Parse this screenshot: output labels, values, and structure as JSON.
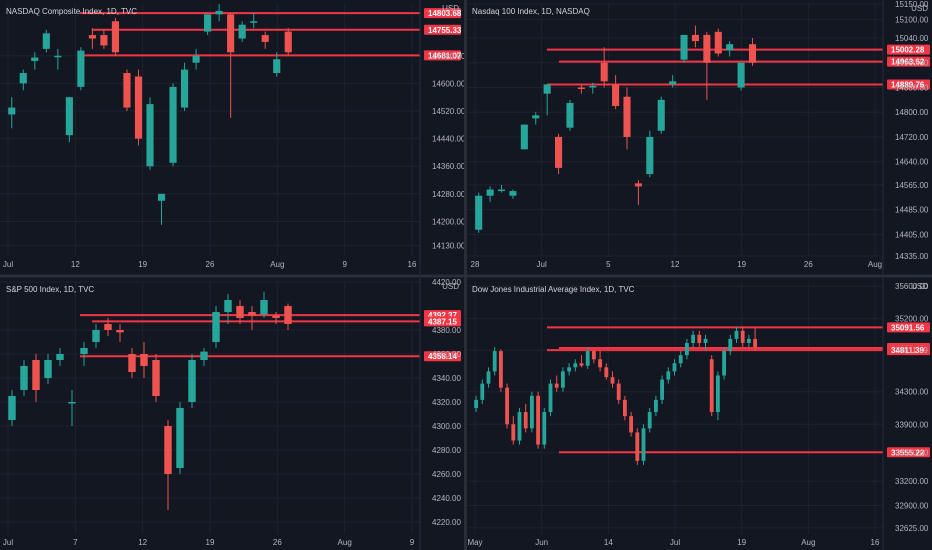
{
  "colors": {
    "background": "#131722",
    "grid": "#1e222d",
    "divider": "#2a2e39",
    "up": "#26a69a",
    "down": "#ef5350",
    "level": "#f23645",
    "text": "#b2b5be"
  },
  "chart_data": [
    {
      "type": "candlestick",
      "title": "NASDAQ Composite Index, 1D, TVC",
      "currency": "USD",
      "ylim": [
        14100,
        14830
      ],
      "x_ticks": [
        "Jul",
        "12",
        "19",
        "26",
        "Aug",
        "9",
        "16"
      ],
      "y_ticks": [
        "14130.00",
        "14200.00",
        "14280.00",
        "14360.00",
        "14440.00",
        "14520.00",
        "14600.00",
        "14680.00"
      ],
      "levels": [
        {
          "value": 14803.68,
          "label": "14803.68"
        },
        {
          "value": 14755.33,
          "label": "14755.33"
        },
        {
          "value": 14681.07,
          "label": "14681.07"
        }
      ],
      "candles": [
        {
          "o": 14510,
          "h": 14560,
          "l": 14470,
          "c": 14530
        },
        {
          "o": 14600,
          "h": 14640,
          "l": 14580,
          "c": 14630
        },
        {
          "o": 14665,
          "h": 14690,
          "l": 14640,
          "c": 14675
        },
        {
          "o": 14700,
          "h": 14755,
          "l": 14690,
          "c": 14745
        },
        {
          "o": 14680,
          "h": 14700,
          "l": 14640,
          "c": 14680
        },
        {
          "o": 14450,
          "h": 14560,
          "l": 14430,
          "c": 14560
        },
        {
          "o": 14590,
          "h": 14705,
          "l": 14580,
          "c": 14695
        },
        {
          "o": 14740,
          "h": 14760,
          "l": 14700,
          "c": 14730
        },
        {
          "o": 14740,
          "h": 14755,
          "l": 14700,
          "c": 14710
        },
        {
          "o": 14780,
          "h": 14790,
          "l": 14680,
          "c": 14690
        },
        {
          "o": 14630,
          "h": 14640,
          "l": 14520,
          "c": 14530
        },
        {
          "o": 14620,
          "h": 14640,
          "l": 14420,
          "c": 14440
        },
        {
          "o": 14360,
          "h": 14560,
          "l": 14350,
          "c": 14540
        },
        {
          "o": 14260,
          "h": 14280,
          "l": 14190,
          "c": 14280
        },
        {
          "o": 14370,
          "h": 14600,
          "l": 14360,
          "c": 14590
        },
        {
          "o": 14530,
          "h": 14660,
          "l": 14520,
          "c": 14640
        },
        {
          "o": 14660,
          "h": 14700,
          "l": 14640,
          "c": 14680
        },
        {
          "o": 14750,
          "h": 14800,
          "l": 14740,
          "c": 14800
        },
        {
          "o": 14800,
          "h": 14830,
          "l": 14780,
          "c": 14810
        },
        {
          "o": 14800,
          "h": 14805,
          "l": 14500,
          "c": 14690
        },
        {
          "o": 14730,
          "h": 14780,
          "l": 14720,
          "c": 14770
        },
        {
          "o": 14780,
          "h": 14805,
          "l": 14760,
          "c": 14780
        },
        {
          "o": 14740,
          "h": 14750,
          "l": 14700,
          "c": 14720
        },
        {
          "o": 14630,
          "h": 14690,
          "l": 14620,
          "c": 14670
        },
        {
          "o": 14750,
          "h": 14760,
          "l": 14680,
          "c": 14690
        }
      ]
    },
    {
      "type": "candlestick",
      "title": "Nasdaq 100 Index, 1D, NASDAQ",
      "currency": "USD",
      "ylim": [
        14335,
        15150
      ],
      "x_ticks": [
        "28",
        "Jul",
        "5",
        "12",
        "19",
        "26",
        "Aug"
      ],
      "y_ticks": [
        "14335.00",
        "14405.00",
        "14485.00",
        "14565.00",
        "14640.00",
        "14720.00",
        "14800.00",
        "14880.00",
        "14960.00",
        "15040.00",
        "15100.00",
        "15150.00"
      ],
      "levels": [
        {
          "value": 15002.28,
          "label": "15002.28"
        },
        {
          "value": 14963.62,
          "label": "14963.62"
        },
        {
          "value": 14889.76,
          "label": "14889.76"
        }
      ],
      "candles": [
        {
          "o": 14420,
          "h": 14540,
          "l": 14410,
          "c": 14530
        },
        {
          "o": 14530,
          "h": 14560,
          "l": 14510,
          "c": 14550
        },
        {
          "o": 14545,
          "h": 14565,
          "l": 14540,
          "c": 14550
        },
        {
          "o": 14530,
          "h": 14550,
          "l": 14520,
          "c": 14545
        },
        {
          "o": 14680,
          "h": 14760,
          "l": 14680,
          "c": 14760
        },
        {
          "o": 14780,
          "h": 14800,
          "l": 14760,
          "c": 14790
        },
        {
          "o": 14860,
          "h": 14890,
          "l": 14790,
          "c": 14890
        },
        {
          "o": 14720,
          "h": 14730,
          "l": 14600,
          "c": 14620
        },
        {
          "o": 14750,
          "h": 14840,
          "l": 14740,
          "c": 14830
        },
        {
          "o": 14880,
          "h": 14890,
          "l": 14860,
          "c": 14875
        },
        {
          "o": 14880,
          "h": 14895,
          "l": 14860,
          "c": 14885
        },
        {
          "o": 14960,
          "h": 15010,
          "l": 14880,
          "c": 14900
        },
        {
          "o": 14890,
          "h": 14920,
          "l": 14810,
          "c": 14820
        },
        {
          "o": 14850,
          "h": 14880,
          "l": 14680,
          "c": 14720
        },
        {
          "o": 14570,
          "h": 14580,
          "l": 14500,
          "c": 14560
        },
        {
          "o": 14600,
          "h": 14740,
          "l": 14590,
          "c": 14720
        },
        {
          "o": 14740,
          "h": 14850,
          "l": 14730,
          "c": 14840
        },
        {
          "o": 14890,
          "h": 14920,
          "l": 14880,
          "c": 14900
        },
        {
          "o": 14970,
          "h": 15050,
          "l": 14960,
          "c": 15050
        },
        {
          "o": 15050,
          "h": 15080,
          "l": 15010,
          "c": 15030
        },
        {
          "o": 15050,
          "h": 15060,
          "l": 14840,
          "c": 14960
        },
        {
          "o": 15060,
          "h": 15070,
          "l": 14980,
          "c": 14990
        },
        {
          "o": 15000,
          "h": 15030,
          "l": 14980,
          "c": 15020
        },
        {
          "o": 14880,
          "h": 14960,
          "l": 14870,
          "c": 14960
        },
        {
          "o": 15020,
          "h": 15040,
          "l": 14950,
          "c": 14960
        }
      ]
    },
    {
      "type": "candlestick",
      "title": "S&P 500 Index, 1D, TVC",
      "currency": "USD",
      "ylim": [
        4210,
        4420
      ],
      "x_ticks": [
        "Jul",
        "7",
        "12",
        "19",
        "26",
        "Aug",
        "9"
      ],
      "y_ticks": [
        "4220.00",
        "4240.00",
        "4260.00",
        "4280.00",
        "4300.00",
        "4320.00",
        "4340.00",
        "4360.00",
        "4380.00",
        "4420.00"
      ],
      "levels": [
        {
          "value": 4392.37,
          "label": "4392.37"
        },
        {
          "value": 4387.15,
          "label": "4387.15"
        },
        {
          "value": 4358.14,
          "label": "4358.14"
        }
      ],
      "candles": [
        {
          "o": 4305,
          "h": 4330,
          "l": 4300,
          "c": 4325
        },
        {
          "o": 4330,
          "h": 4355,
          "l": 4325,
          "c": 4350
        },
        {
          "o": 4355,
          "h": 4360,
          "l": 4320,
          "c": 4330
        },
        {
          "o": 4340,
          "h": 4360,
          "l": 4335,
          "c": 4355
        },
        {
          "o": 4355,
          "h": 4365,
          "l": 4350,
          "c": 4360
        },
        {
          "o": 4320,
          "h": 4330,
          "l": 4300,
          "c": 4320
        },
        {
          "o": 4360,
          "h": 4370,
          "l": 4350,
          "c": 4365
        },
        {
          "o": 4370,
          "h": 4385,
          "l": 4365,
          "c": 4380
        },
        {
          "o": 4385,
          "h": 4390,
          "l": 4375,
          "c": 4380
        },
        {
          "o": 4380,
          "h": 4385,
          "l": 4370,
          "c": 4378
        },
        {
          "o": 4360,
          "h": 4365,
          "l": 4340,
          "c": 4345
        },
        {
          "o": 4360,
          "h": 4370,
          "l": 4340,
          "c": 4350
        },
        {
          "o": 4355,
          "h": 4360,
          "l": 4320,
          "c": 4325
        },
        {
          "o": 4300,
          "h": 4305,
          "l": 4230,
          "c": 4260
        },
        {
          "o": 4265,
          "h": 4320,
          "l": 4260,
          "c": 4315
        },
        {
          "o": 4320,
          "h": 4360,
          "l": 4315,
          "c": 4355
        },
        {
          "o": 4355,
          "h": 4365,
          "l": 4350,
          "c": 4362
        },
        {
          "o": 4370,
          "h": 4400,
          "l": 4365,
          "c": 4395
        },
        {
          "o": 4395,
          "h": 4410,
          "l": 4385,
          "c": 4405
        },
        {
          "o": 4400,
          "h": 4405,
          "l": 4385,
          "c": 4390
        },
        {
          "o": 4395,
          "h": 4400,
          "l": 4380,
          "c": 4392
        },
        {
          "o": 4393,
          "h": 4412,
          "l": 4390,
          "c": 4405
        },
        {
          "o": 4392,
          "h": 4395,
          "l": 4385,
          "c": 4390
        },
        {
          "o": 4400,
          "h": 4402,
          "l": 4380,
          "c": 4385
        }
      ]
    },
    {
      "type": "candlestick",
      "title": "Dow Jones Industrial Average Index, 1D, TVC",
      "currency": "USD",
      "ylim": [
        32550,
        35650
      ],
      "x_ticks": [
        "May",
        "Jun",
        "14",
        "Jul",
        "19",
        "Aug",
        "16"
      ],
      "y_ticks": [
        "32625.00",
        "32900.00",
        "33200.00",
        "33550.00",
        "33900.00",
        "34300.00",
        "34811.39",
        "35200.00",
        "35600.00"
      ],
      "levels": [
        {
          "value": 35091.56,
          "label": "35091.56"
        },
        {
          "value": 34838.17,
          "label": "34838.17"
        },
        {
          "value": 34811.39,
          "label": "34811.39"
        },
        {
          "value": 33555.22,
          "label": "33555.22"
        }
      ],
      "candles": [
        {
          "o": 34100,
          "h": 34250,
          "l": 34050,
          "c": 34200
        },
        {
          "o": 34200,
          "h": 34450,
          "l": 34150,
          "c": 34400
        },
        {
          "o": 34400,
          "h": 34600,
          "l": 34350,
          "c": 34550
        },
        {
          "o": 34550,
          "h": 34850,
          "l": 34500,
          "c": 34800
        },
        {
          "o": 34800,
          "h": 34820,
          "l": 34300,
          "c": 34350
        },
        {
          "o": 34350,
          "h": 34400,
          "l": 33850,
          "c": 33900
        },
        {
          "o": 33900,
          "h": 34000,
          "l": 33650,
          "c": 33700
        },
        {
          "o": 33700,
          "h": 34100,
          "l": 33650,
          "c": 34050
        },
        {
          "o": 34050,
          "h": 34150,
          "l": 33800,
          "c": 33850
        },
        {
          "o": 33850,
          "h": 34300,
          "l": 33800,
          "c": 34250
        },
        {
          "o": 34250,
          "h": 34300,
          "l": 33600,
          "c": 33650
        },
        {
          "o": 33650,
          "h": 34100,
          "l": 33600,
          "c": 34050
        },
        {
          "o": 34050,
          "h": 34450,
          "l": 34000,
          "c": 34400
        },
        {
          "o": 34400,
          "h": 34500,
          "l": 34300,
          "c": 34350
        },
        {
          "o": 34350,
          "h": 34600,
          "l": 34300,
          "c": 34550
        },
        {
          "o": 34550,
          "h": 34650,
          "l": 34500,
          "c": 34600
        },
        {
          "o": 34600,
          "h": 34700,
          "l": 34550,
          "c": 34650
        },
        {
          "o": 34650,
          "h": 34750,
          "l": 34600,
          "c": 34620
        },
        {
          "o": 34620,
          "h": 34850,
          "l": 34580,
          "c": 34800
        },
        {
          "o": 34800,
          "h": 34820,
          "l": 34650,
          "c": 34700
        },
        {
          "o": 34700,
          "h": 34800,
          "l": 34550,
          "c": 34600
        },
        {
          "o": 34600,
          "h": 34650,
          "l": 34450,
          "c": 34480
        },
        {
          "o": 34480,
          "h": 34550,
          "l": 34350,
          "c": 34400
        },
        {
          "o": 34400,
          "h": 34450,
          "l": 34150,
          "c": 34200
        },
        {
          "o": 34200,
          "h": 34250,
          "l": 33950,
          "c": 34000
        },
        {
          "o": 34000,
          "h": 34050,
          "l": 33750,
          "c": 33800
        },
        {
          "o": 33800,
          "h": 33850,
          "l": 33400,
          "c": 33450
        },
        {
          "o": 33450,
          "h": 33900,
          "l": 33400,
          "c": 33850
        },
        {
          "o": 33850,
          "h": 34100,
          "l": 33800,
          "c": 34050
        },
        {
          "o": 34050,
          "h": 34250,
          "l": 34000,
          "c": 34200
        },
        {
          "o": 34200,
          "h": 34500,
          "l": 34150,
          "c": 34450
        },
        {
          "o": 34450,
          "h": 34600,
          "l": 34400,
          "c": 34550
        },
        {
          "o": 34550,
          "h": 34700,
          "l": 34500,
          "c": 34650
        },
        {
          "o": 34650,
          "h": 34800,
          "l": 34600,
          "c": 34750
        },
        {
          "o": 34750,
          "h": 34950,
          "l": 34700,
          "c": 34900
        },
        {
          "o": 34900,
          "h": 35050,
          "l": 34850,
          "c": 35000
        },
        {
          "o": 35000,
          "h": 35050,
          "l": 34850,
          "c": 34900
        },
        {
          "o": 34900,
          "h": 35000,
          "l": 34800,
          "c": 34950
        },
        {
          "o": 34700,
          "h": 34750,
          "l": 34000,
          "c": 34050
        },
        {
          "o": 34050,
          "h": 34550,
          "l": 33950,
          "c": 34500
        },
        {
          "o": 34500,
          "h": 34850,
          "l": 34450,
          "c": 34800
        },
        {
          "o": 34800,
          "h": 35000,
          "l": 34750,
          "c": 34950
        },
        {
          "o": 34950,
          "h": 35100,
          "l": 34900,
          "c": 35050
        },
        {
          "o": 35050,
          "h": 35100,
          "l": 34850,
          "c": 34900
        },
        {
          "o": 34900,
          "h": 35000,
          "l": 34850,
          "c": 34950
        },
        {
          "o": 34950,
          "h": 35080,
          "l": 34800,
          "c": 34850
        }
      ]
    }
  ]
}
